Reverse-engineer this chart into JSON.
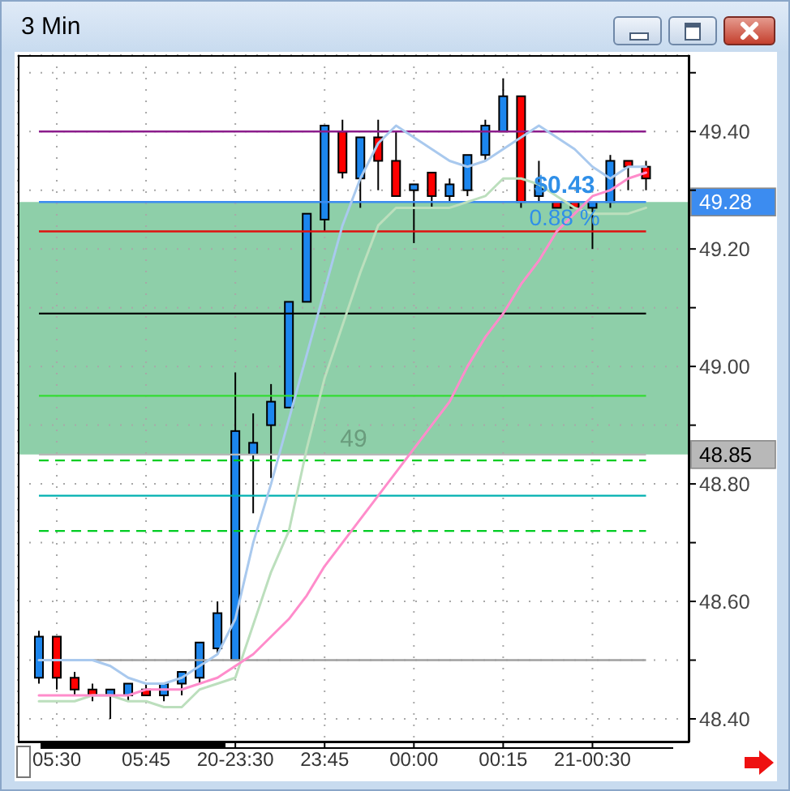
{
  "chart_data": {
    "type": "candlestick",
    "title": "3 Min",
    "categories": [
      null,
      "05:30",
      null,
      null,
      null,
      null,
      "05:45",
      null,
      null,
      null,
      null,
      "20-23:30",
      null,
      null,
      null,
      null,
      "23:45",
      null,
      null,
      null,
      null,
      "00:00",
      null,
      null,
      null,
      null,
      "00:15",
      null,
      null,
      null,
      null,
      "21-00:30",
      null,
      null,
      null
    ],
    "ohlc": [
      [
        48.47,
        48.55,
        48.46,
        48.54
      ],
      [
        48.54,
        48.54,
        48.45,
        48.47
      ],
      [
        48.47,
        48.48,
        48.44,
        48.45
      ],
      [
        48.45,
        48.46,
        48.43,
        48.44
      ],
      [
        48.44,
        48.45,
        48.4,
        48.45
      ],
      [
        48.44,
        48.46,
        48.43,
        48.46
      ],
      [
        48.45,
        48.46,
        48.44,
        48.44
      ],
      [
        48.44,
        48.46,
        48.43,
        48.46
      ],
      [
        48.46,
        48.48,
        48.44,
        48.48
      ],
      [
        48.47,
        48.53,
        48.46,
        48.53
      ],
      [
        48.52,
        48.6,
        48.51,
        48.58
      ],
      [
        48.5,
        48.99,
        48.5,
        48.89
      ],
      [
        48.85,
        48.92,
        48.75,
        48.87
      ],
      [
        48.9,
        48.97,
        48.81,
        48.94
      ],
      [
        48.93,
        49.11,
        48.93,
        49.11
      ],
      [
        49.11,
        49.26,
        49.11,
        49.26
      ],
      [
        49.25,
        49.41,
        49.23,
        49.41
      ],
      [
        49.4,
        49.42,
        49.32,
        49.33
      ],
      [
        49.32,
        49.39,
        49.27,
        49.39
      ],
      [
        49.39,
        49.42,
        49.3,
        49.35
      ],
      [
        49.35,
        49.4,
        49.29,
        49.29
      ],
      [
        49.3,
        49.31,
        49.21,
        49.31
      ],
      [
        49.33,
        49.33,
        49.27,
        49.29
      ],
      [
        49.29,
        49.32,
        49.28,
        49.31
      ],
      [
        49.3,
        49.36,
        49.29,
        49.36
      ],
      [
        49.36,
        49.42,
        49.35,
        49.41
      ],
      [
        49.4,
        49.49,
        49.4,
        49.46
      ],
      [
        49.46,
        49.46,
        49.27,
        49.28
      ],
      [
        49.29,
        49.35,
        49.28,
        49.31
      ],
      [
        49.28,
        49.28,
        49.27,
        49.27
      ],
      [
        49.28,
        49.28,
        49.27,
        49.27
      ],
      [
        49.27,
        49.28,
        49.2,
        49.28
      ],
      [
        49.28,
        49.36,
        49.27,
        49.35
      ],
      [
        49.35,
        49.35,
        49.3,
        49.34
      ],
      [
        49.34,
        49.35,
        49.3,
        49.32
      ]
    ],
    "colors": [
      "#1c86ee",
      "#ff0000",
      "#ff0000",
      "#ff0000",
      "#1c86ee",
      "#1c86ee",
      "#ff0000",
      "#1c86ee",
      "#1c86ee",
      "#1c86ee",
      "#1c86ee",
      "#1c86ee",
      "#1c86ee",
      "#1c86ee",
      "#1c86ee",
      "#1c86ee",
      "#1c86ee",
      "#ff0000",
      "#1c86ee",
      "#ff0000",
      "#ff0000",
      "#1c86ee",
      "#ff0000",
      "#1c86ee",
      "#1c86ee",
      "#1c86ee",
      "#1c86ee",
      "#ff0000",
      "#1c86ee",
      "#ff0000",
      "#ff0000",
      "#1c86ee",
      "#1c86ee",
      "#ff0000",
      "#ff0000"
    ],
    "series": [
      {
        "type": "line",
        "color": "#a9c9ee",
        "values": [
          48.5,
          48.5,
          48.5,
          48.5,
          48.49,
          48.47,
          48.46,
          48.46,
          48.47,
          48.49,
          48.51,
          48.57,
          48.7,
          48.8,
          48.91,
          49.02,
          49.13,
          49.24,
          49.32,
          49.38,
          49.41,
          49.39,
          49.37,
          49.35,
          49.34,
          49.35,
          49.37,
          49.39,
          49.41,
          49.39,
          49.37,
          49.34,
          49.32,
          49.34,
          49.34
        ]
      },
      {
        "type": "line",
        "color": "#bcdfbd",
        "values": [
          48.43,
          48.43,
          48.43,
          48.44,
          48.44,
          48.43,
          48.43,
          48.42,
          48.42,
          48.45,
          48.46,
          48.47,
          48.56,
          48.65,
          48.72,
          48.86,
          48.98,
          49.07,
          49.16,
          49.24,
          49.27,
          49.27,
          49.27,
          49.27,
          49.28,
          49.29,
          49.32,
          49.32,
          49.31,
          49.29,
          49.27,
          49.26,
          49.26,
          49.26,
          49.27
        ]
      },
      {
        "type": "line",
        "color": "#ff8ccb",
        "values": [
          48.44,
          48.44,
          48.44,
          48.44,
          48.44,
          48.44,
          48.45,
          48.45,
          48.45,
          48.46,
          48.47,
          48.49,
          48.51,
          48.54,
          48.57,
          48.61,
          48.66,
          48.7,
          48.74,
          48.78,
          48.82,
          48.86,
          48.9,
          48.94,
          49.0,
          49.05,
          49.09,
          49.14,
          49.18,
          49.23,
          49.26,
          49.29,
          49.3,
          49.32,
          49.33
        ]
      }
    ],
    "ylim": [
      48.36,
      49.53
    ],
    "yticks": [
      {
        "value": 48.4,
        "label": "48.40"
      },
      {
        "value": 48.5,
        "label": null
      },
      {
        "value": 48.6,
        "label": "48.60"
      },
      {
        "value": 48.7,
        "label": null
      },
      {
        "value": 48.8,
        "label": "48.80"
      },
      {
        "value": 48.9,
        "label": null
      },
      {
        "value": 49.0,
        "label": "49.00"
      },
      {
        "value": 49.1,
        "label": null
      },
      {
        "value": 49.2,
        "label": "49.20"
      },
      {
        "value": 49.3,
        "label": null
      },
      {
        "value": 49.4,
        "label": "49.40"
      },
      {
        "value": 49.5,
        "label": null
      }
    ],
    "grid": true,
    "marker": "none",
    "bands": [
      {
        "axis": "y",
        "from": 48.85,
        "to": 49.28,
        "label": "49",
        "color": "#8ecfa9"
      }
    ],
    "ref_lines": [
      {
        "axis": "y",
        "value": 49.4,
        "color": "#8b1c8b"
      },
      {
        "axis": "y",
        "value": 49.23,
        "color": "#e01010"
      },
      {
        "axis": "y",
        "value": 49.09,
        "color": "#000000"
      },
      {
        "axis": "y",
        "value": 48.95,
        "color": "#33dd33"
      },
      {
        "axis": "y",
        "value": 48.84,
        "color": "#00cc22",
        "line_style": "dashed"
      },
      {
        "axis": "y",
        "value": 48.78,
        "color": "#00b0b0"
      },
      {
        "axis": "y",
        "value": 48.72,
        "color": "#00cc22",
        "line_style": "dashed"
      },
      {
        "axis": "y",
        "value": 48.5,
        "color": "#a0a0a0"
      },
      {
        "axis": "y",
        "value": 49.28,
        "color": "#3c8cf0",
        "label": "49.28"
      },
      {
        "axis": "y",
        "value": 48.85,
        "color": "#b8b8b8",
        "label": "48.85"
      }
    ],
    "annotations": [
      "$0.43",
      "0.88 %"
    ]
  }
}
